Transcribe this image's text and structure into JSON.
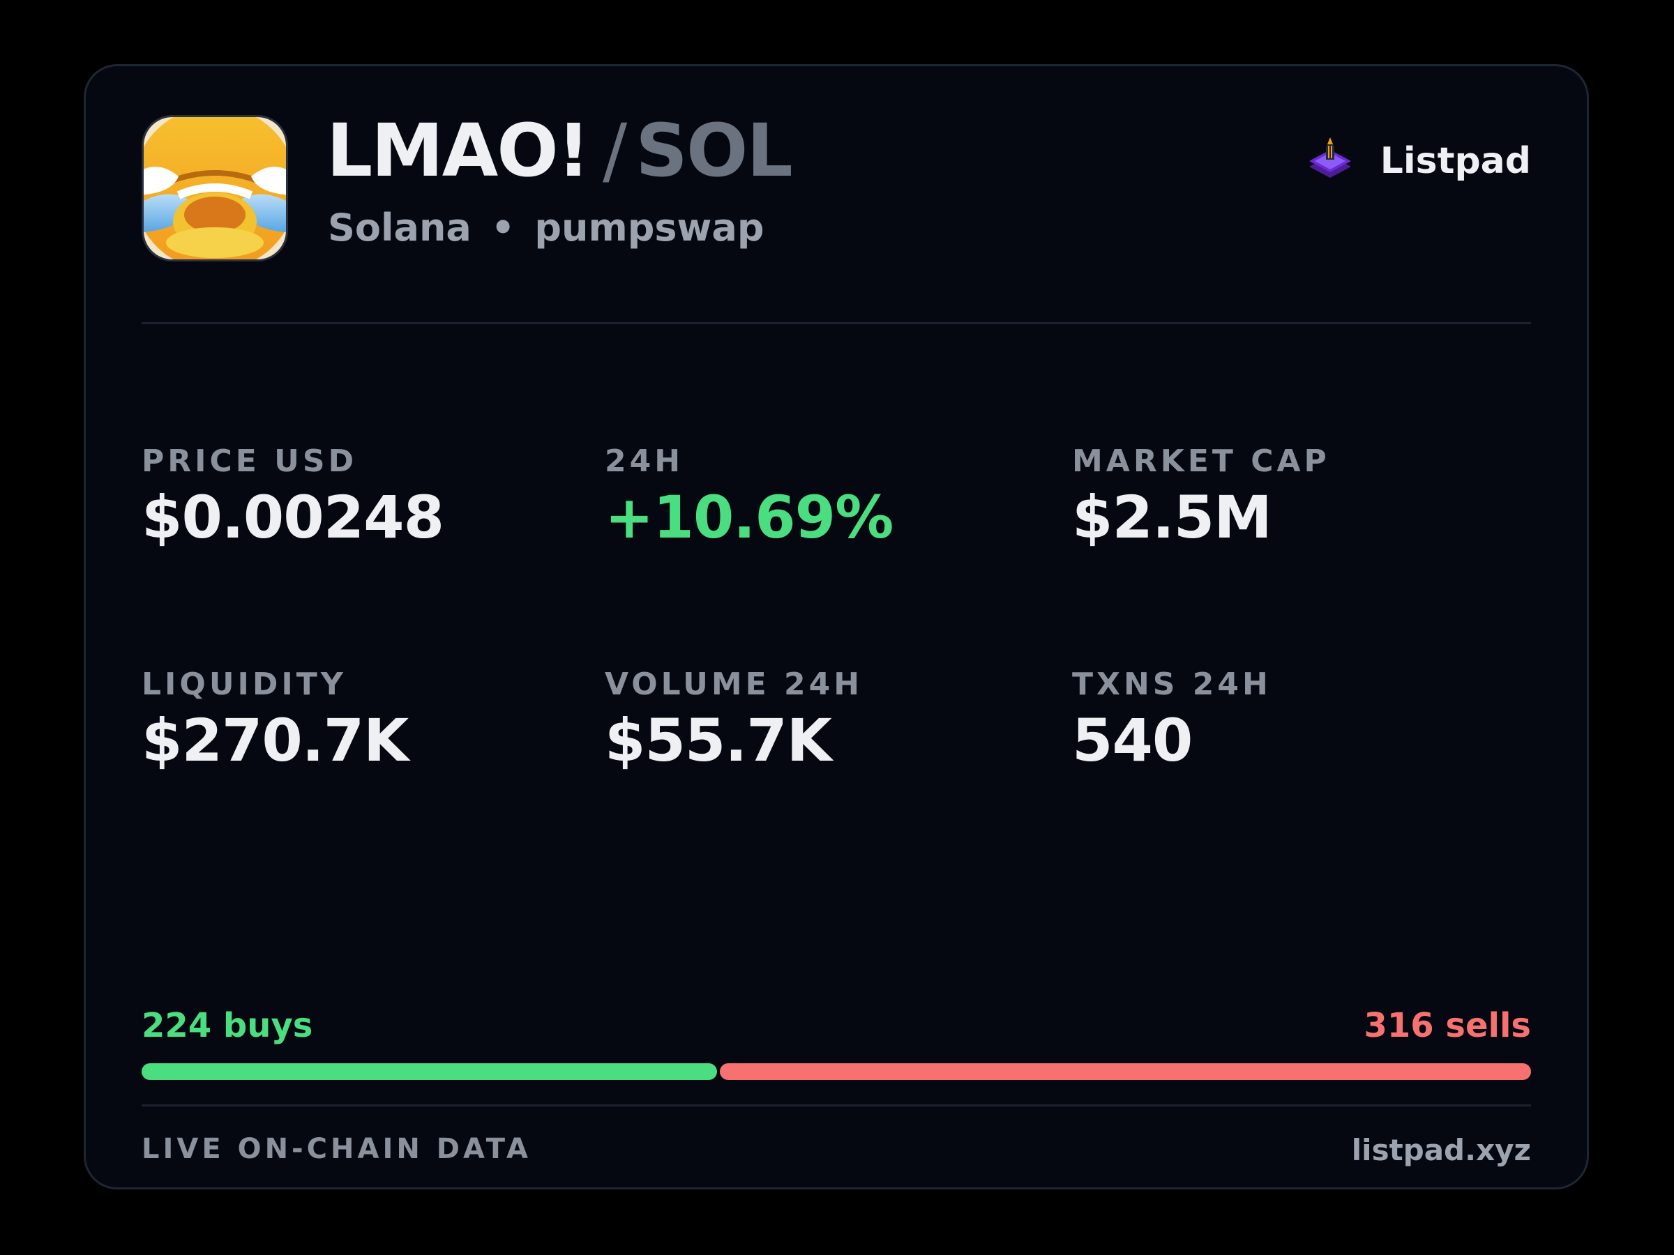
{
  "token": {
    "base_symbol": "LMAO!",
    "separator": "/",
    "quote_symbol": "SOL",
    "chain": "Solana",
    "dot": "•",
    "dex": "pumpswap",
    "icon": "laughing-crying-emoji-icon"
  },
  "brand": {
    "name": "Listpad",
    "icon": "listpad-rocket-logo-icon",
    "accent": "#7c3aed"
  },
  "stats": [
    {
      "label": "PRICE USD",
      "value": "$0.00248"
    },
    {
      "label": "24H",
      "value": "+10.69%"
    },
    {
      "label": "MARKET CAP",
      "value": "$2.5M"
    },
    {
      "label": "LIQUIDITY",
      "value": "$270.7K"
    },
    {
      "label": "VOLUME 24H",
      "value": "$55.7K"
    },
    {
      "label": "TXNS 24H",
      "value": "540"
    }
  ],
  "trades": {
    "buys_label": "224 buys",
    "sells_label": "316 sells",
    "buys": 224,
    "sells": 316
  },
  "footer": {
    "left": "LIVE ON-CHAIN DATA",
    "right": "listpad.xyz"
  },
  "colors": {
    "background": "#000000",
    "card": "#050810",
    "positive": "#4ade80",
    "negative": "#f87171",
    "muted": "#8b919c"
  }
}
